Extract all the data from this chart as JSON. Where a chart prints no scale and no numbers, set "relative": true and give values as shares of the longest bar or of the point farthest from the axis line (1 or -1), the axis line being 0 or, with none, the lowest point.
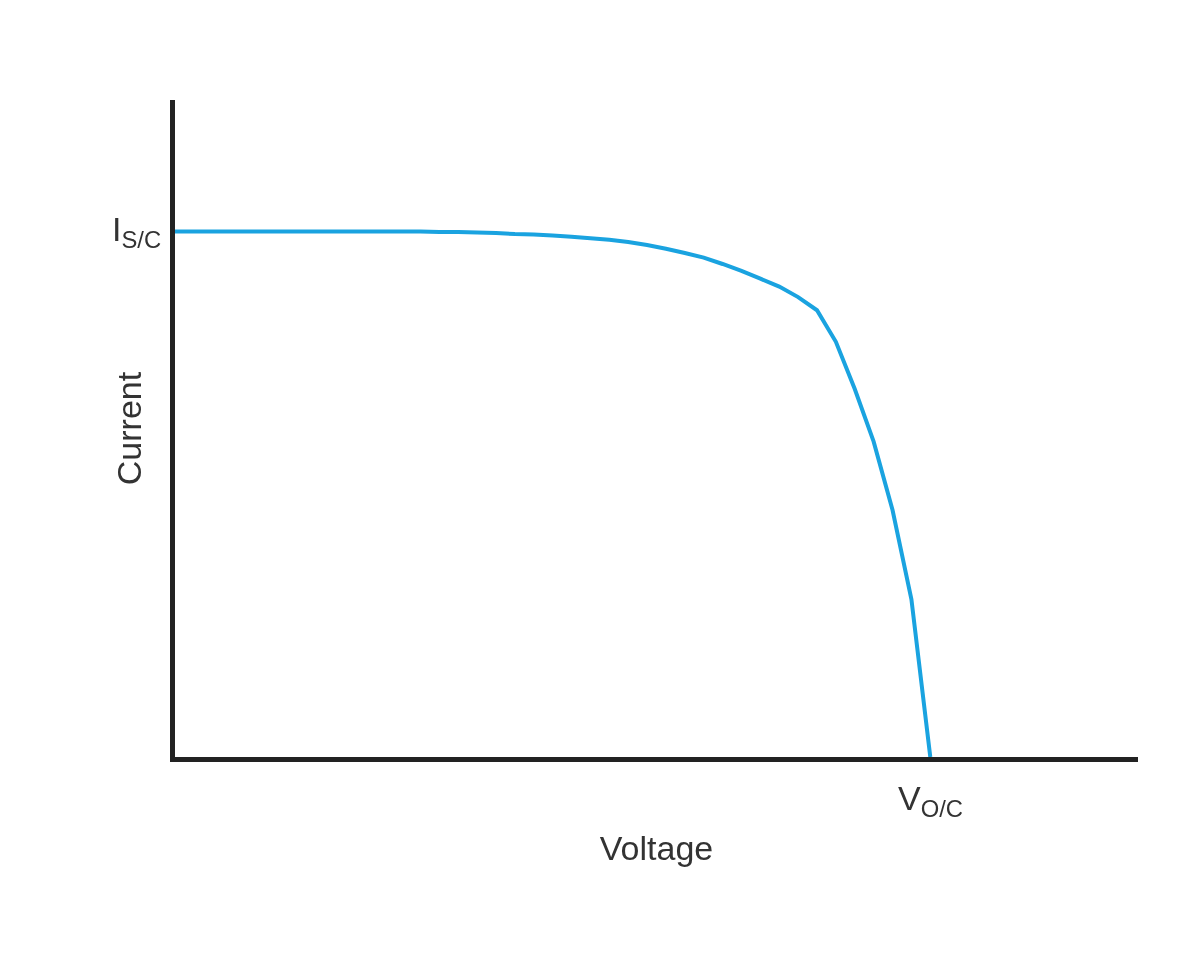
{
  "chart_data": {
    "type": "line",
    "relative": true,
    "xlabel": "Voltage",
    "ylabel": "Current",
    "categories": [
      null,
      null,
      null,
      null,
      null,
      null,
      null,
      null,
      null,
      null,
      null,
      null,
      null,
      null,
      null,
      null,
      null,
      null,
      null,
      null,
      null,
      null,
      null,
      null,
      null,
      null,
      null,
      null,
      null,
      null,
      null,
      null,
      null,
      null,
      null,
      null,
      null,
      null,
      null,
      null,
      null,
      null,
      null,
      null,
      null,
      null,
      null,
      null,
      null,
      null,
      null,
      null
    ],
    "values": [
      1,
      1,
      1,
      1,
      1,
      1,
      1,
      1,
      1,
      1,
      1,
      1,
      1,
      1,
      0.999,
      0.999,
      0.998,
      0.997,
      0.995,
      0.994,
      0.992,
      0.99,
      0.987,
      0.984,
      0.98,
      0.974,
      0.967,
      0.959,
      0.95,
      0.938,
      0.925,
      0.91,
      0.895,
      0.875,
      0.85,
      0.79,
      0.7,
      0.6,
      0.47,
      0.3,
      0,
      null,
      null,
      null,
      null,
      null,
      null,
      null,
      null,
      null,
      null,
      null
    ],
    "color": "#1aa3e0",
    "annotations": [
      "I$_{S/C}$",
      "V$_{O/C}$"
    ]
  }
}
